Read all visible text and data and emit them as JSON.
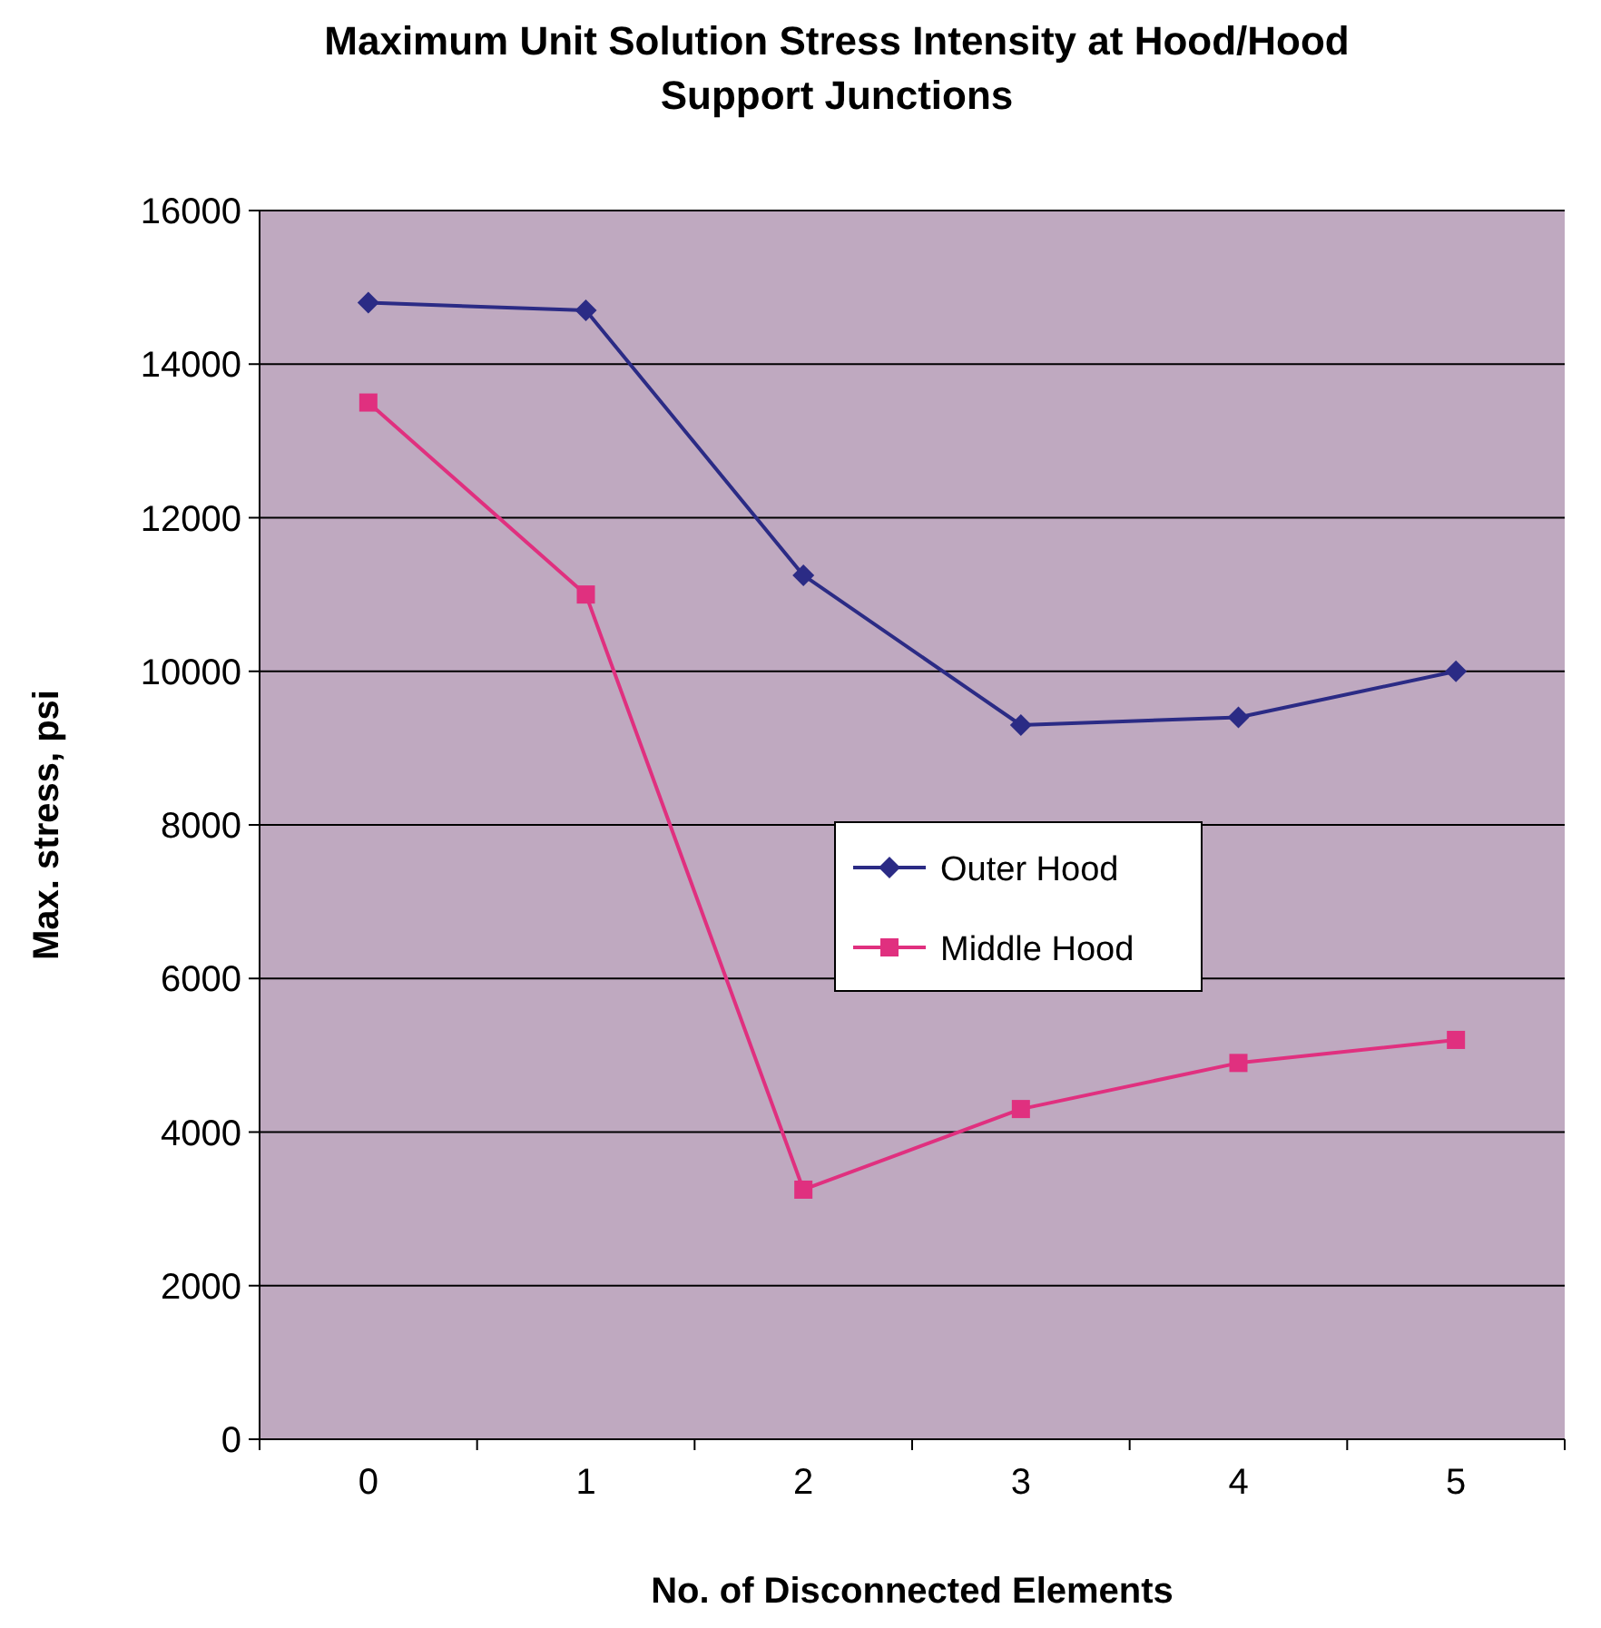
{
  "chart_data": {
    "type": "line",
    "title": "Maximum Unit Solution Stress Intensity at Hood/Hood Support Junctions",
    "xlabel": "No. of Disconnected Elements",
    "ylabel": "Max. stress, psi",
    "categories": [
      "0",
      "1",
      "2",
      "3",
      "4",
      "5"
    ],
    "series": [
      {
        "name": "Outer Hood",
        "color": "#2b2b85",
        "marker": "diamond",
        "values": [
          14800,
          14700,
          11250,
          9300,
          9400,
          10000
        ]
      },
      {
        "name": "Middle Hood",
        "color": "#e0307f",
        "marker": "square",
        "values": [
          13500,
          11000,
          3250,
          4300,
          4900,
          5200
        ]
      }
    ],
    "ylim": [
      0,
      16000
    ],
    "yticks": [
      0,
      2000,
      4000,
      6000,
      8000,
      10000,
      12000,
      14000,
      16000
    ],
    "grid": "y",
    "legend": "center",
    "line_style": "solid"
  }
}
